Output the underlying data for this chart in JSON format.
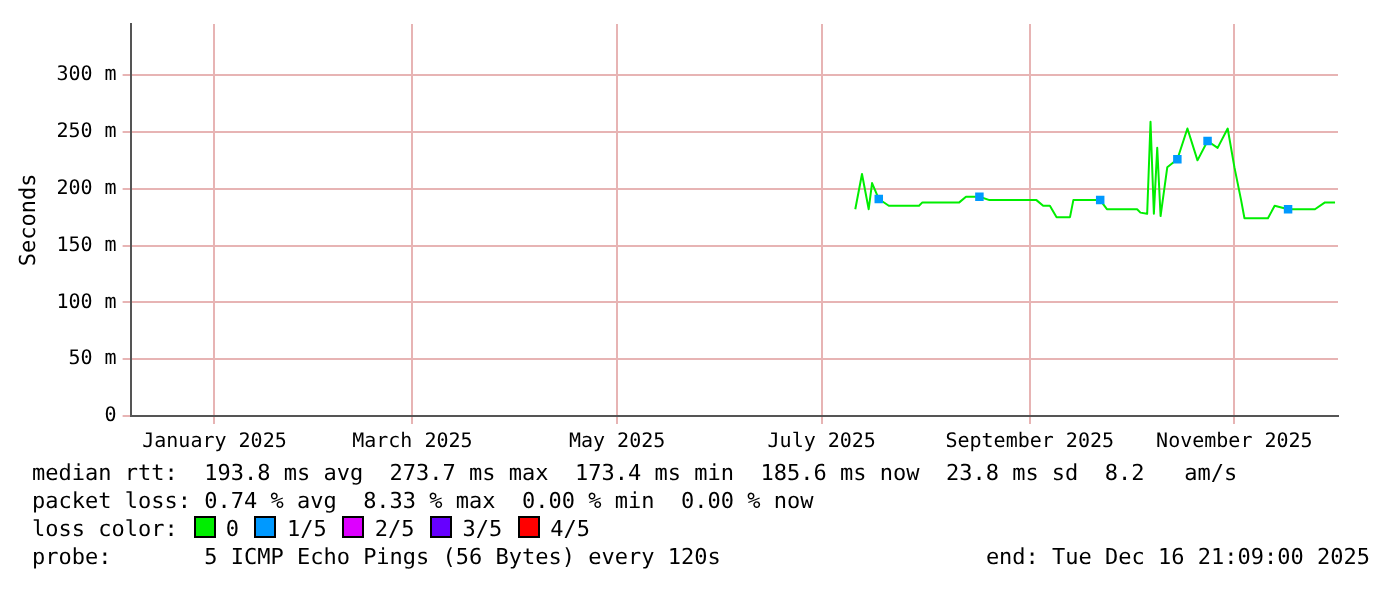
{
  "chart_data": {
    "type": "line",
    "ylabel": "Seconds",
    "legend_title": "loss color:",
    "legend": "bottom",
    "grid": true,
    "line_style": "solid",
    "marker": "none",
    "xlim": [
      "2024-12-22",
      "2025-12-16T21:09"
    ],
    "xticks": [
      {
        "value": "2025-01-16",
        "label": "January 2025"
      },
      {
        "value": "2025-03-16",
        "label": "March 2025"
      },
      {
        "value": "2025-05-16",
        "label": "May 2025"
      },
      {
        "value": "2025-07-16",
        "label": "July 2025"
      },
      {
        "value": "2025-09-16",
        "label": "September 2025"
      },
      {
        "value": "2025-11-16",
        "label": "November 2025"
      }
    ],
    "ylim": [
      0,
      345
    ],
    "yticks": [
      0,
      {
        "value": 50,
        "label": "50 m"
      },
      {
        "value": 100,
        "label": "100 m"
      },
      {
        "value": 150,
        "label": "150 m"
      },
      {
        "value": 200,
        "label": "200 m"
      },
      {
        "value": 250,
        "label": "250 m"
      },
      {
        "value": 300,
        "label": "300 m"
      }
    ],
    "series": [
      {
        "name": "0",
        "color": "#00ee00",
        "x": [
          "2025-07-26",
          "2025-07-28",
          "2025-07-30",
          "2025-07-31",
          "2025-08-02",
          "2025-08-05",
          "2025-08-14",
          "2025-08-15",
          "2025-08-26",
          "2025-08-28",
          "2025-09-01",
          "2025-09-04",
          "2025-09-18",
          "2025-09-20",
          "2025-09-22",
          "2025-09-24",
          "2025-09-28",
          "2025-09-29",
          "2025-10-07",
          "2025-10-09",
          "2025-10-18",
          "2025-10-19",
          "2025-10-21",
          "2025-10-22",
          "2025-10-23",
          "2025-10-24",
          "2025-10-25",
          "2025-10-27",
          "2025-10-30",
          "2025-11-02",
          "2025-11-05",
          "2025-11-08",
          "2025-11-11",
          "2025-11-14",
          "2025-11-16",
          "2025-11-18",
          "2025-11-19",
          "2025-11-26",
          "2025-11-28",
          "2025-12-02",
          "2025-12-10",
          "2025-12-13",
          "2025-12-16"
        ],
        "values": [
          182,
          213,
          182,
          205,
          191,
          185,
          185,
          188,
          188,
          193,
          193,
          190,
          190,
          185,
          185,
          175,
          175,
          190,
          190,
          182,
          182,
          179,
          178,
          259,
          178,
          236,
          176,
          219,
          226,
          253,
          225,
          242,
          236,
          253,
          219,
          190,
          174,
          174,
          185,
          182,
          182,
          188,
          188
        ]
      },
      {
        "name": "1/5",
        "color": "#0099ff",
        "type": "scatter",
        "marker": "square",
        "x": [
          "2025-08-02",
          "2025-09-01",
          "2025-10-07",
          "2025-10-30",
          "2025-11-08",
          "2025-12-02"
        ],
        "values": [
          191,
          193,
          190,
          226,
          242,
          182
        ]
      },
      {
        "name": "2/5",
        "color": "#dd00ff",
        "type": "scatter",
        "marker": "square"
      },
      {
        "name": "3/5",
        "color": "#6600ff",
        "type": "scatter",
        "marker": "square"
      },
      {
        "name": "4/5",
        "color": "#ff0000",
        "type": "scatter",
        "marker": "square"
      }
    ],
    "annotations": [
      "median rtt:  193.8 ms avg  273.7 ms max  173.4 ms min  185.6 ms now  23.8 ms sd  8.2   am/s",
      "packet loss: 0.74 % avg  8.33 % max  0.00 % min  0.00 % now",
      "probe:       5 ICMP Echo Pings (56 Bytes) every 120s",
      "end: Tue Dec 16 21:09:00 2025"
    ]
  }
}
